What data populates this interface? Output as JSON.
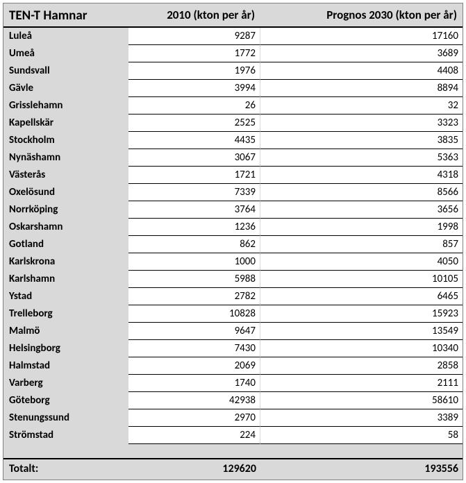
{
  "table": {
    "type": "table",
    "background_color": "#d9d9d9",
    "cell_background": "#ffffff",
    "border_color": "#000000",
    "outer_border_color": "#808080",
    "font_family": "Calibri, Arial, sans-serif",
    "header_fontsize": 17,
    "title_fontsize": 19,
    "body_fontsize": 15,
    "columns": {
      "name": "TEN-T Hamnar",
      "col_2010": "2010 (kton per år)",
      "col_2030": "Prognos 2030 (kton per år)"
    },
    "column_widths": {
      "name": 180,
      "col_2010": 190,
      "col_2030": "flex"
    },
    "column_alignment": {
      "name": "left",
      "col_2010": "right",
      "col_2030": "right"
    },
    "rows": [
      {
        "name": "Luleå",
        "v2010": "9287",
        "v2030": "17160"
      },
      {
        "name": "Umeå",
        "v2010": "1772",
        "v2030": "3689"
      },
      {
        "name": "Sundsvall",
        "v2010": "1976",
        "v2030": "4408"
      },
      {
        "name": "Gävle",
        "v2010": "3994",
        "v2030": "8894"
      },
      {
        "name": "Grisslehamn",
        "v2010": "26",
        "v2030": "32"
      },
      {
        "name": "Kapellskär",
        "v2010": "2525",
        "v2030": "3323"
      },
      {
        "name": "Stockholm",
        "v2010": "4435",
        "v2030": "3835"
      },
      {
        "name": "Nynäshamn",
        "v2010": "3067",
        "v2030": "5363"
      },
      {
        "name": "Västerås",
        "v2010": "1721",
        "v2030": "4318"
      },
      {
        "name": "Oxelösund",
        "v2010": "7339",
        "v2030": "8566"
      },
      {
        "name": "Norrköping",
        "v2010": "3764",
        "v2030": "3656"
      },
      {
        "name": "Oskarshamn",
        "v2010": "1236",
        "v2030": "1998"
      },
      {
        "name": "Gotland",
        "v2010": "862",
        "v2030": "857"
      },
      {
        "name": "Karlskrona",
        "v2010": "1000",
        "v2030": "4050"
      },
      {
        "name": "Karlshamn",
        "v2010": "5988",
        "v2030": "10105"
      },
      {
        "name": "Ystad",
        "v2010": "2782",
        "v2030": "6465"
      },
      {
        "name": "Trelleborg",
        "v2010": "10828",
        "v2030": "15923"
      },
      {
        "name": "Malmö",
        "v2010": "9647",
        "v2030": "13549"
      },
      {
        "name": "Helsingborg",
        "v2010": "7430",
        "v2030": "10340"
      },
      {
        "name": "Halmstad",
        "v2010": "2069",
        "v2030": "2858"
      },
      {
        "name": "Varberg",
        "v2010": "1740",
        "v2030": "2111"
      },
      {
        "name": "Göteborg",
        "v2010": "42938",
        "v2030": "58610"
      },
      {
        "name": "Stenungssund",
        "v2010": "2970",
        "v2030": "3389"
      },
      {
        "name": "Strömstad",
        "v2010": "224",
        "v2030": "58"
      }
    ],
    "total": {
      "label": "Totalt:",
      "v2010": "129620",
      "v2030": "193556"
    }
  }
}
